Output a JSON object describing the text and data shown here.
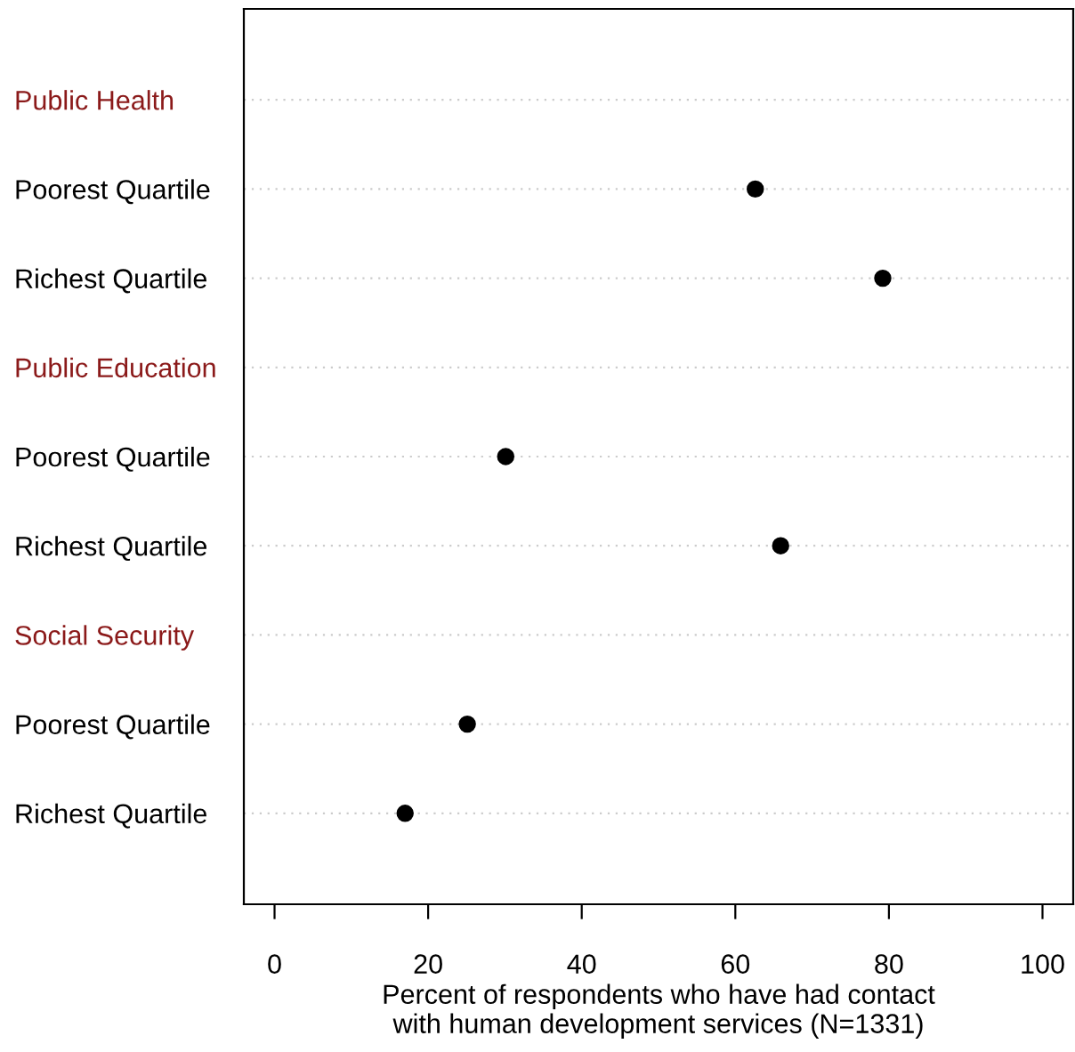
{
  "chart_data": {
    "type": "scatter",
    "orientation": "horizontal",
    "xlabel": "Percent of respondents who have had contact\nwith human development services (N=1331)",
    "categories": [
      "Public Health",
      "Poorest Quartile",
      "Richest Quartile",
      "Public Education",
      "Poorest Quartile",
      "Richest Quartile",
      "Social Security",
      "Poorest Quartile",
      "Richest Quartile"
    ],
    "values": [
      null,
      62.6,
      79.2,
      null,
      30.1,
      65.9,
      null,
      25.1,
      17.0
    ],
    "color": "#000000",
    "xlim": [
      -4,
      104
    ],
    "xticks": [
      0,
      20,
      40,
      60,
      80,
      100
    ],
    "grid": "y",
    "marker": "circle"
  }
}
